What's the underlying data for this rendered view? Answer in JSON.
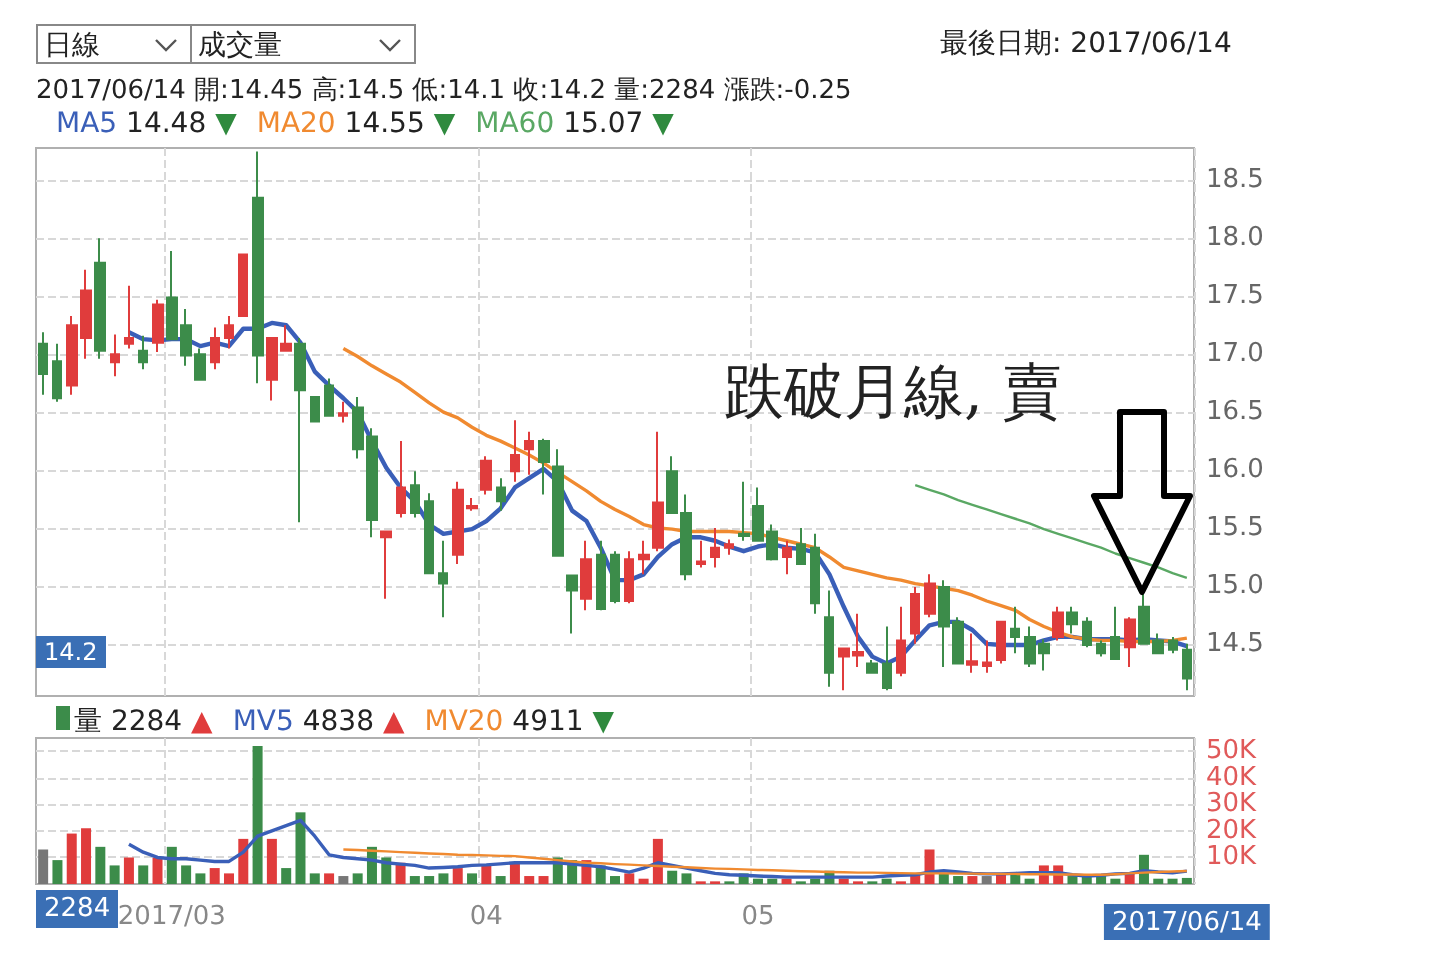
{
  "chart_data": [
    {
      "type": "candlestick",
      "categories": [
        null,
        null,
        null,
        null,
        null,
        null,
        null,
        null,
        null,
        "2017/03",
        null,
        null,
        null,
        null,
        null,
        null,
        null,
        null,
        null,
        null,
        null,
        null,
        null,
        null,
        null,
        null,
        null,
        null,
        null,
        null,
        null,
        "04",
        null,
        null,
        null,
        null,
        null,
        null,
        null,
        null,
        null,
        null,
        null,
        null,
        null,
        null,
        null,
        null,
        null,
        null,
        "05",
        null,
        null,
        null,
        null,
        null,
        null,
        null,
        null,
        null,
        null,
        null,
        null,
        null,
        null,
        null,
        null,
        null,
        null,
        null,
        null,
        null,
        null,
        null,
        null,
        null,
        null,
        null,
        null,
        null,
        "2017/06/14"
      ],
      "ohlc": [
        [
          17.09,
          17.19,
          16.65,
          16.83
        ],
        [
          16.94,
          17.09,
          16.59,
          16.62
        ],
        [
          16.73,
          17.33,
          16.65,
          17.25
        ],
        [
          17.14,
          17.73,
          16.96,
          17.55
        ],
        [
          17.79,
          18.0,
          16.96,
          17.03
        ],
        [
          16.93,
          17.17,
          16.81,
          17.0
        ],
        [
          17.09,
          17.59,
          17.05,
          17.14
        ],
        [
          17.03,
          17.16,
          16.87,
          16.93
        ],
        [
          17.1,
          17.47,
          17.02,
          17.43
        ],
        [
          17.49,
          17.89,
          17.13,
          17.13
        ],
        [
          17.25,
          17.39,
          16.9,
          16.99
        ],
        [
          17.0,
          17.05,
          16.78,
          16.78
        ],
        [
          16.93,
          17.23,
          16.87,
          17.14
        ],
        [
          17.14,
          17.33,
          17.05,
          17.25
        ],
        [
          17.33,
          17.86,
          17.33,
          17.86
        ],
        [
          18.35,
          18.75,
          16.75,
          16.99
        ],
        [
          16.78,
          17.14,
          16.6,
          17.14
        ],
        [
          17.03,
          17.25,
          17.03,
          17.09
        ],
        [
          17.09,
          17.14,
          15.55,
          16.69
        ],
        [
          16.63,
          16.63,
          16.42,
          16.42
        ],
        [
          16.73,
          16.79,
          16.47,
          16.47
        ],
        [
          16.47,
          16.59,
          16.41,
          16.49
        ],
        [
          16.54,
          16.63,
          16.1,
          16.18
        ],
        [
          16.29,
          16.36,
          15.42,
          15.57
        ],
        [
          15.42,
          15.47,
          14.89,
          15.47
        ],
        [
          15.63,
          16.25,
          15.59,
          15.85
        ],
        [
          15.87,
          15.99,
          15.59,
          15.63
        ],
        [
          15.73,
          15.8,
          15.1,
          15.11
        ],
        [
          15.11,
          15.39,
          14.73,
          15.02
        ],
        [
          15.27,
          15.9,
          15.19,
          15.83
        ],
        [
          15.67,
          15.76,
          15.65,
          15.69
        ],
        [
          15.83,
          16.12,
          15.79,
          16.08
        ],
        [
          15.85,
          15.93,
          15.65,
          15.73
        ],
        [
          15.99,
          16.43,
          15.9,
          16.13
        ],
        [
          16.18,
          16.33,
          15.96,
          16.25
        ],
        [
          16.25,
          16.27,
          15.79,
          16.07
        ],
        [
          16.03,
          16.18,
          15.26,
          15.26
        ],
        [
          15.09,
          15.09,
          14.59,
          14.96
        ],
        [
          14.89,
          15.39,
          14.79,
          15.23
        ],
        [
          15.27,
          15.39,
          14.79,
          14.8
        ],
        [
          15.27,
          15.3,
          14.85,
          14.87
        ],
        [
          14.87,
          15.3,
          14.85,
          15.23
        ],
        [
          15.23,
          15.39,
          15.1,
          15.27
        ],
        [
          15.33,
          16.33,
          15.3,
          15.72
        ],
        [
          15.99,
          16.12,
          15.63,
          15.63
        ],
        [
          15.63,
          15.79,
          15.05,
          15.1
        ],
        [
          15.19,
          15.39,
          15.16,
          15.21
        ],
        [
          15.25,
          15.5,
          15.16,
          15.33
        ],
        [
          15.33,
          15.4,
          15.27,
          15.36
        ],
        [
          15.45,
          15.9,
          15.39,
          15.43
        ],
        [
          15.69,
          15.85,
          15.39,
          15.39
        ],
        [
          15.47,
          15.53,
          15.22,
          15.23
        ],
        [
          15.25,
          15.39,
          15.1,
          15.33
        ],
        [
          15.36,
          15.5,
          15.19,
          15.19
        ],
        [
          15.33,
          15.45,
          14.76,
          14.85
        ],
        [
          14.73,
          14.96,
          14.13,
          14.25
        ],
        [
          14.39,
          14.46,
          14.1,
          14.46
        ],
        [
          14.4,
          14.76,
          14.3,
          14.43
        ],
        [
          14.33,
          14.36,
          14.25,
          14.25
        ],
        [
          14.33,
          14.65,
          14.1,
          14.12
        ],
        [
          14.25,
          14.82,
          14.22,
          14.53
        ],
        [
          14.59,
          14.99,
          14.5,
          14.93
        ],
        [
          14.76,
          15.1,
          14.73,
          15.02
        ],
        [
          14.99,
          15.05,
          14.3,
          14.65
        ],
        [
          14.69,
          14.73,
          14.33,
          14.33
        ],
        [
          14.32,
          14.59,
          14.25,
          14.35
        ],
        [
          14.31,
          14.53,
          14.25,
          14.34
        ],
        [
          14.36,
          14.69,
          14.33,
          14.69
        ],
        [
          14.63,
          14.82,
          14.42,
          14.56
        ],
        [
          14.56,
          14.65,
          14.3,
          14.33
        ],
        [
          14.5,
          14.54,
          14.27,
          14.42
        ],
        [
          14.56,
          14.82,
          14.53,
          14.77
        ],
        [
          14.77,
          14.82,
          14.59,
          14.67
        ],
        [
          14.69,
          14.73,
          14.47,
          14.49
        ],
        [
          14.5,
          14.53,
          14.39,
          14.42
        ],
        [
          14.56,
          14.82,
          14.36,
          14.37
        ],
        [
          14.47,
          14.73,
          14.3,
          14.71
        ],
        [
          14.82,
          14.93,
          14.5,
          14.5
        ],
        [
          14.53,
          14.59,
          14.42,
          14.42
        ],
        [
          14.53,
          14.56,
          14.42,
          14.45
        ],
        [
          14.45,
          14.5,
          14.1,
          14.2
        ]
      ],
      "colors": [
        "#3c8c4a",
        "#3c8c4a",
        "#e03c3c",
        "#e03c3c",
        "#3c8c4a",
        "#e03c3c",
        "#e03c3c",
        "#3c8c4a",
        "#e03c3c",
        "#3c8c4a",
        "#3c8c4a",
        "#3c8c4a",
        "#e03c3c",
        "#e03c3c",
        "#e03c3c",
        "#3c8c4a",
        "#e03c3c",
        "#e03c3c",
        "#3c8c4a",
        "#3c8c4a",
        "#3c8c4a",
        "#e03c3c",
        "#3c8c4a",
        "#3c8c4a",
        "#e03c3c",
        "#e03c3c",
        "#3c8c4a",
        "#3c8c4a",
        "#3c8c4a",
        "#e03c3c",
        "#e03c3c",
        "#e03c3c",
        "#3c8c4a",
        "#e03c3c",
        "#e03c3c",
        "#3c8c4a",
        "#3c8c4a",
        "#3c8c4a",
        "#e03c3c",
        "#3c8c4a",
        "#3c8c4a",
        "#e03c3c",
        "#e03c3c",
        "#e03c3c",
        "#3c8c4a",
        "#3c8c4a",
        "#e03c3c",
        "#e03c3c",
        "#e03c3c",
        "#3c8c4a",
        "#3c8c4a",
        "#3c8c4a",
        "#e03c3c",
        "#3c8c4a",
        "#3c8c4a",
        "#3c8c4a",
        "#e03c3c",
        "#e03c3c",
        "#3c8c4a",
        "#3c8c4a",
        "#e03c3c",
        "#e03c3c",
        "#e03c3c",
        "#3c8c4a",
        "#3c8c4a",
        "#e03c3c",
        "#e03c3c",
        "#e03c3c",
        "#3c8c4a",
        "#3c8c4a",
        "#3c8c4a",
        "#e03c3c",
        "#3c8c4a",
        "#3c8c4a",
        "#3c8c4a",
        "#3c8c4a",
        "#e03c3c",
        "#3c8c4a",
        "#3c8c4a",
        "#3c8c4a",
        "#3c8c4a"
      ],
      "series": [
        {
          "name": "MA5",
          "type": "line",
          "color": "#3a5fb8",
          "values": [
            null,
            null,
            null,
            null,
            null,
            null,
            17.19,
            17.13,
            17.12,
            17.13,
            17.13,
            17.07,
            17.1,
            17.07,
            17.22,
            17.22,
            17.27,
            17.25,
            17.1,
            16.85,
            16.73,
            16.62,
            16.5,
            16.25,
            16.02,
            15.85,
            15.73,
            15.53,
            15.45,
            15.47,
            15.49,
            15.56,
            15.67,
            15.85,
            15.93,
            16.01,
            15.9,
            15.65,
            15.56,
            15.33,
            15.05,
            15.05,
            15.1,
            15.25,
            15.36,
            15.42,
            15.42,
            15.39,
            15.34,
            15.3,
            15.34,
            15.36,
            15.33,
            15.32,
            15.29,
            15.1,
            14.82,
            14.56,
            14.39,
            14.33,
            14.39,
            14.53,
            14.66,
            14.69,
            14.69,
            14.62,
            14.5,
            14.49,
            14.49,
            14.49,
            14.53,
            14.56,
            14.56,
            14.54,
            14.54,
            14.54,
            14.53,
            14.54,
            14.53,
            14.52,
            14.48
          ]
        },
        {
          "name": "MA20",
          "type": "line",
          "color": "#f08a30",
          "values": [
            null,
            null,
            null,
            null,
            null,
            null,
            null,
            null,
            null,
            null,
            null,
            null,
            null,
            null,
            null,
            null,
            null,
            null,
            null,
            null,
            null,
            17.05,
            16.98,
            16.9,
            16.83,
            16.76,
            16.67,
            16.58,
            16.5,
            16.45,
            16.37,
            16.3,
            16.25,
            16.19,
            16.13,
            16.06,
            15.98,
            15.9,
            15.82,
            15.73,
            15.66,
            15.6,
            15.53,
            15.5,
            15.49,
            15.47,
            15.47,
            15.47,
            15.47,
            15.46,
            15.45,
            15.42,
            15.39,
            15.36,
            15.33,
            15.25,
            15.16,
            15.13,
            15.1,
            15.07,
            15.05,
            15.02,
            15.0,
            14.98,
            14.96,
            14.92,
            14.87,
            14.83,
            14.79,
            14.71,
            14.65,
            14.6,
            14.56,
            14.54,
            14.53,
            14.53,
            14.52,
            14.52,
            14.52,
            14.53,
            14.55
          ]
        },
        {
          "name": "MA60",
          "type": "line",
          "color": "#5aa864",
          "values": [
            null,
            null,
            null,
            null,
            null,
            null,
            null,
            null,
            null,
            null,
            null,
            null,
            null,
            null,
            null,
            null,
            null,
            null,
            null,
            null,
            null,
            null,
            null,
            null,
            null,
            null,
            null,
            null,
            null,
            null,
            null,
            null,
            null,
            null,
            null,
            null,
            null,
            null,
            null,
            null,
            null,
            null,
            null,
            null,
            null,
            null,
            null,
            null,
            null,
            null,
            null,
            null,
            null,
            null,
            null,
            null,
            null,
            null,
            null,
            null,
            null,
            15.87,
            15.83,
            15.79,
            15.74,
            15.7,
            15.66,
            15.62,
            15.58,
            15.54,
            15.49,
            15.45,
            15.41,
            15.37,
            15.33,
            15.28,
            15.24,
            15.2,
            15.16,
            15.11,
            15.07
          ]
        }
      ],
      "ylim": [
        14.05,
        18.78
      ],
      "yticks": [
        {
          "value": 14.5,
          "label": "14.5"
        },
        {
          "value": 15,
          "label": "15.0"
        },
        {
          "value": 15.5,
          "label": "15.5"
        },
        {
          "value": 16,
          "label": "16.0"
        },
        {
          "value": 16.5,
          "label": "16.5"
        },
        {
          "value": 17,
          "label": "17.0"
        },
        {
          "value": 17.5,
          "label": "17.5"
        },
        {
          "value": 18,
          "label": "18.0"
        },
        {
          "value": 18.5,
          "label": "18.5"
        }
      ],
      "grid": true,
      "tick_labels": "y",
      "marker": "none",
      "line_style": "solid",
      "annotations": [
        "日線",
        "成交量",
        "最後日期: 2017/06/14",
        "2017/06/14 開:14.45 高:14.5 低:14.1 收:14.2 量:2284 漲跌:-0.25",
        "14.48 ▼",
        "14.55 ▼",
        "15.07 ▼",
        "跌破月線, 賣",
        "14.2"
      ]
    },
    {
      "type": "bar",
      "categories": [
        null,
        null,
        null,
        null,
        null,
        null,
        null,
        null,
        null,
        "2017/03",
        null,
        null,
        null,
        null,
        null,
        null,
        null,
        null,
        null,
        null,
        null,
        null,
        null,
        null,
        null,
        null,
        null,
        null,
        null,
        null,
        null,
        "04",
        null,
        null,
        null,
        null,
        null,
        null,
        null,
        null,
        null,
        null,
        null,
        null,
        null,
        null,
        null,
        null,
        null,
        null,
        "05",
        null,
        null,
        null,
        null,
        null,
        null,
        null,
        null,
        null,
        null,
        null,
        null,
        null,
        null,
        null,
        null,
        null,
        null,
        null,
        null,
        null,
        null,
        null,
        null,
        null,
        null,
        null,
        null,
        null,
        "2017/06/14"
      ],
      "series": [
        {
          "name": "量",
          "type": "bar",
          "values": [
            13000,
            9000,
            19000,
            21000,
            14000,
            7000,
            10000,
            7000,
            10000,
            14000,
            7000,
            4000,
            6000,
            4000,
            17000,
            52000,
            17000,
            6000,
            27000,
            4000,
            4000,
            3000,
            4000,
            14000,
            10000,
            8000,
            3000,
            3000,
            4000,
            6000,
            4000,
            7000,
            3000,
            8000,
            3000,
            3000,
            10000,
            9000,
            9000,
            7000,
            3000,
            4000,
            2000,
            17000,
            5000,
            4000,
            1000,
            1000,
            1000,
            4000,
            2000,
            2000,
            2000,
            1000,
            2000,
            5000,
            2000,
            1000,
            1000,
            2000,
            1000,
            4000,
            13000,
            4000,
            3000,
            3000,
            3000,
            4000,
            4000,
            2000,
            7000,
            7000,
            3000,
            3000,
            3000,
            2000,
            4000,
            11000,
            2000,
            2000,
            2284
          ],
          "colors": [
            "#777777",
            "#3c8c4a",
            "#e03c3c",
            "#e03c3c",
            "#3c8c4a",
            "#3c8c4a",
            "#e03c3c",
            "#3c8c4a",
            "#e03c3c",
            "#3c8c4a",
            "#3c8c4a",
            "#3c8c4a",
            "#e03c3c",
            "#e03c3c",
            "#e03c3c",
            "#3c8c4a",
            "#e03c3c",
            "#3c8c4a",
            "#3c8c4a",
            "#3c8c4a",
            "#e03c3c",
            "#777777",
            "#3c8c4a",
            "#3c8c4a",
            "#3c8c4a",
            "#e03c3c",
            "#3c8c4a",
            "#3c8c4a",
            "#3c8c4a",
            "#e03c3c",
            "#3c8c4a",
            "#e03c3c",
            "#3c8c4a",
            "#e03c3c",
            "#e03c3c",
            "#e03c3c",
            "#3c8c4a",
            "#3c8c4a",
            "#e03c3c",
            "#3c8c4a",
            "#3c8c4a",
            "#e03c3c",
            "#e03c3c",
            "#e03c3c",
            "#3c8c4a",
            "#3c8c4a",
            "#e03c3c",
            "#e03c3c",
            "#3c8c4a",
            "#3c8c4a",
            "#3c8c4a",
            "#3c8c4a",
            "#e03c3c",
            "#3c8c4a",
            "#3c8c4a",
            "#3c8c4a",
            "#e03c3c",
            "#e03c3c",
            "#3c8c4a",
            "#3c8c4a",
            "#e03c3c",
            "#e03c3c",
            "#e03c3c",
            "#3c8c4a",
            "#3c8c4a",
            "#e03c3c",
            "#777777",
            "#e03c3c",
            "#3c8c4a",
            "#3c8c4a",
            "#e03c3c",
            "#e03c3c",
            "#3c8c4a",
            "#3c8c4a",
            "#3c8c4a",
            "#3c8c4a",
            "#e03c3c",
            "#3c8c4a",
            "#3c8c4a",
            "#3c8c4a",
            "#3c8c4a"
          ]
        },
        {
          "name": "MV5",
          "type": "line",
          "color": "#3a5fb8",
          "values": [
            null,
            null,
            null,
            null,
            null,
            null,
            15000,
            12000,
            10000,
            9500,
            9500,
            9000,
            8500,
            8500,
            12000,
            18000,
            20000,
            22000,
            24000,
            18000,
            11000,
            10000,
            9500,
            9000,
            8000,
            7500,
            7000,
            6000,
            6200,
            6500,
            7000,
            7200,
            7600,
            8000,
            8000,
            8000,
            8000,
            7500,
            7000,
            6500,
            5500,
            4500,
            6000,
            8000,
            7000,
            6000,
            5000,
            4000,
            3500,
            3300,
            3000,
            2800,
            2600,
            2600,
            2600,
            2600,
            2600,
            2600,
            2600,
            3000,
            3300,
            3500,
            4500,
            5000,
            4500,
            4000,
            3800,
            3800,
            4000,
            4300,
            4300,
            4300,
            3500,
            3000,
            3300,
            3800,
            4000,
            5000,
            4500,
            4200,
            4838
          ]
        },
        {
          "name": "MV20",
          "type": "line",
          "color": "#f08a30",
          "values": [
            null,
            null,
            null,
            null,
            null,
            null,
            null,
            null,
            null,
            null,
            null,
            null,
            null,
            null,
            null,
            null,
            null,
            null,
            null,
            null,
            null,
            13000,
            12800,
            12500,
            12300,
            12000,
            11800,
            11500,
            11300,
            11000,
            10900,
            10800,
            10600,
            10500,
            10000,
            9500,
            9000,
            8500,
            8000,
            7800,
            7500,
            7300,
            7000,
            6800,
            6500,
            6300,
            6000,
            5800,
            5700,
            5500,
            5300,
            5200,
            5000,
            4800,
            4700,
            4500,
            4400,
            4300,
            4300,
            4200,
            4100,
            4000,
            4000,
            4000,
            3900,
            3900,
            3800,
            3800,
            3800,
            3700,
            3700,
            3600,
            3600,
            3500,
            3500,
            3700,
            4000,
            4300,
            4500,
            4700,
            4911
          ]
        }
      ],
      "ylim": [
        0,
        55000
      ],
      "yticks": [
        {
          "value": 10000,
          "label": "10K"
        },
        {
          "value": 20000,
          "label": "20K"
        },
        {
          "value": 30000,
          "label": "30K"
        },
        {
          "value": 40000,
          "label": "40K"
        },
        {
          "value": 50000,
          "label": "50K"
        }
      ],
      "grid": true,
      "marker": "none",
      "line_style": "solid",
      "annotations": [
        "2284 ▲",
        "4838 ▲",
        "4911 ▼",
        "2284"
      ]
    }
  ]
}
